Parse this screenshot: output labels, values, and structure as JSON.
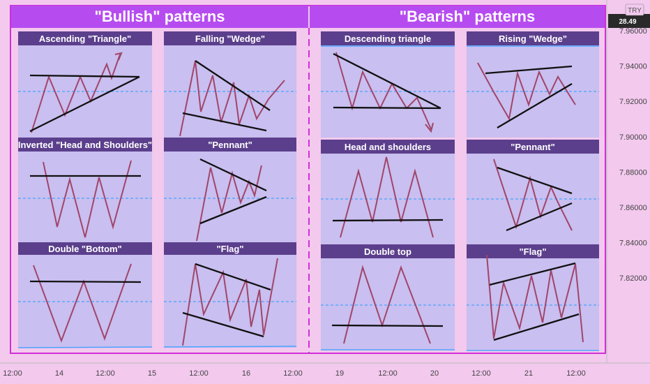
{
  "bullish_header": "\"Bullish\" patterns",
  "bearish_header": "\"Bearish\" patterns",
  "currency": "TRY",
  "price_badge": "28.49",
  "cells": {
    "ascending_triangle": "Ascending \"Triangle\"",
    "falling_wedge": "Falling \"Wedge\"",
    "inverted_hs": "Inverted \"Head and Shoulders\"",
    "pennant_bull": "\"Pennant\"",
    "double_bottom": "Double \"Bottom\"",
    "flag_bull": "\"Flag\"",
    "descending_triangle": "Descending triangle",
    "rising_wedge": "Rising \"Wedge\"",
    "head_shoulders": "Head and shoulders",
    "pennant_bear": "\"Pennant\"",
    "double_top": "Double top",
    "flag_bear": "\"Flag\""
  },
  "y_axis": [
    "7.96000",
    "7.94000",
    "7.92000",
    "7.90000",
    "7.88000",
    "7.86000",
    "7.84000",
    "7.82000"
  ],
  "x_axis": [
    "12:00",
    "14",
    "12:00",
    "15",
    "12:00",
    "16",
    "12:00",
    "19",
    "12:00",
    "20",
    "12:00",
    "21",
    "12:00"
  ],
  "colors": {
    "background": "#f3c9ee",
    "header_fill": "#b64cf0",
    "cell_fill": "#c9bff0",
    "cell_title_fill": "#5b3f8c",
    "pattern_line": "#a0456a",
    "trend_line": "#111111",
    "dashed_line": "#4aa3ff",
    "border": "#d12fd6"
  }
}
